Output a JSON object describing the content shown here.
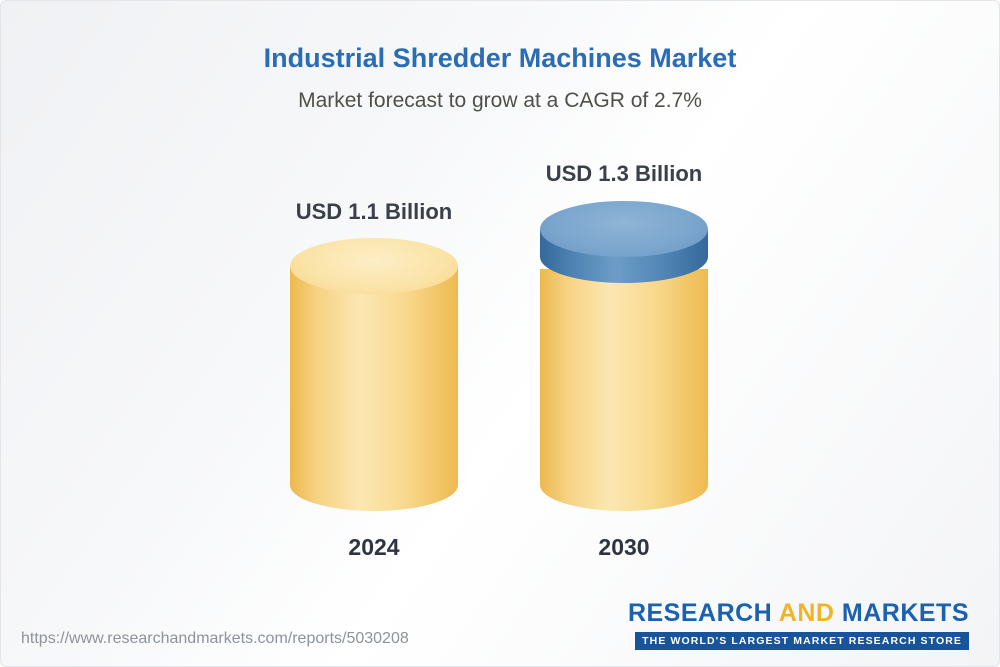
{
  "title": "Industrial Shredder Machines Market",
  "subtitle": "Market forecast to grow at a CAGR of 2.7%",
  "chart_data": {
    "type": "bar",
    "subtype": "3d-cylinder",
    "categories": [
      "2024",
      "2030"
    ],
    "values": [
      1.1,
      1.3
    ],
    "unit": "USD Billion",
    "value_labels": [
      "USD 1.1 Billion",
      "USD 1.3 Billion"
    ],
    "title": "Industrial Shredder Machines Market",
    "subtitle": "Market forecast to grow at a CAGR of 2.7%",
    "cagr_percent": 2.7,
    "legend": "none",
    "grid": false,
    "colors": {
      "base_segment": "#f6cd74",
      "growth_segment": "#4c81b2",
      "title": "#2a6db5",
      "subtitle": "#514f49",
      "labels": "#3a3f4a"
    }
  },
  "footer": {
    "url": "https://www.researchandmarkets.com/reports/5030208"
  },
  "logo": {
    "word1": "RESEARCH",
    "word2": "AND",
    "word3": "MARKETS",
    "tagline": "THE WORLD'S LARGEST MARKET RESEARCH STORE"
  }
}
